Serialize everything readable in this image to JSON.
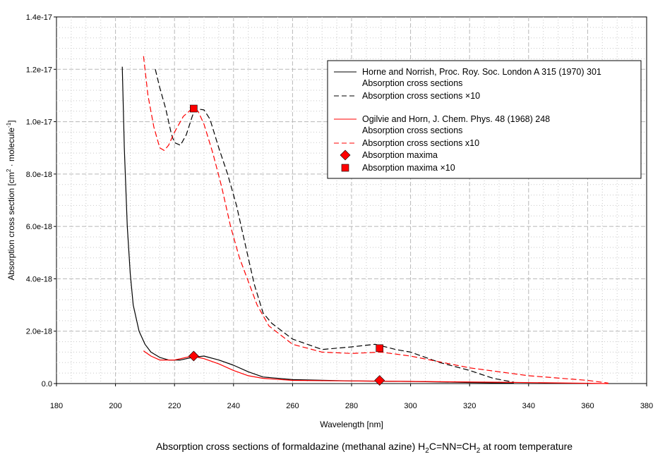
{
  "chart_data": {
    "type": "line",
    "title_parts": [
      "Absorption cross sections of formaldazine (methanal azine) H",
      "2",
      "C=NN=CH",
      "2",
      " at room temperature"
    ],
    "xlabel": "Wavelength [nm]",
    "ylabel_parts": [
      "Absorption cross section [cm",
      "2",
      " · molecule",
      "-1",
      "]"
    ],
    "xlim": [
      180,
      380
    ],
    "ylim": [
      0,
      1.4e-17
    ],
    "y_unit_scale": 1e-18,
    "x_ticks": [
      "180",
      "200",
      "220",
      "240",
      "260",
      "280",
      "300",
      "320",
      "340",
      "360",
      "380"
    ],
    "y_ticks": [
      "0.0",
      "2.0e-18",
      "4.0e-18",
      "6.0e-18",
      "8.0e-18",
      "1.0e-17",
      "1.2e-17",
      "1.4e-17"
    ],
    "grid": true,
    "legend_position": "top-right",
    "legend": {
      "ref1": "Horne and Norrish, Proc. Roy. Soc. London A 315 (1970) 301",
      "ref1_solid": "Absorption cross sections",
      "ref1_dashed": "Absorption cross sections ×10",
      "ref2": "Ogilvie and  Horn, J. Chem. Phys. 48 (1968) 248",
      "ref2_solid": "Absorption cross sections",
      "ref2_dashed": "Absorption cross sections x10",
      "maxima": "Absorption maxima",
      "maxima10": "Absorption maxima ×10"
    },
    "series": [
      {
        "name": "Horne and Norrish - Absorption cross sections",
        "color": "#000000",
        "dash": false,
        "points": [
          [
            202.3,
            12.1
          ],
          [
            203,
            9
          ],
          [
            204,
            6
          ],
          [
            205,
            4.2
          ],
          [
            206,
            3
          ],
          [
            208,
            2.0
          ],
          [
            210,
            1.5
          ],
          [
            212,
            1.2
          ],
          [
            215,
            1.0
          ],
          [
            218,
            0.9
          ],
          [
            222,
            0.9
          ],
          [
            226,
            1.0
          ],
          [
            230,
            1.05
          ],
          [
            235,
            0.9
          ],
          [
            240,
            0.7
          ],
          [
            245,
            0.45
          ],
          [
            250,
            0.25
          ],
          [
            260,
            0.15
          ],
          [
            280,
            0.1
          ],
          [
            300,
            0.08
          ],
          [
            320,
            0.04
          ],
          [
            335,
            0.02
          ]
        ]
      },
      {
        "name": "Horne and Norrish - Absorption cross sections ×10",
        "color": "#000000",
        "dash": true,
        "points": [
          [
            213.5,
            12.0
          ],
          [
            215,
            11.3
          ],
          [
            217,
            10.5
          ],
          [
            219,
            9.5
          ],
          [
            220,
            9.2
          ],
          [
            222,
            9.1
          ],
          [
            224,
            9.5
          ],
          [
            226,
            10.2
          ],
          [
            227,
            10.5
          ],
          [
            230,
            10.45
          ],
          [
            232,
            10.1
          ],
          [
            235,
            9.0
          ],
          [
            238,
            8.0
          ],
          [
            241,
            6.8
          ],
          [
            244,
            5.3
          ],
          [
            247,
            3.8
          ],
          [
            250,
            2.7
          ],
          [
            253,
            2.3
          ],
          [
            260,
            1.7
          ],
          [
            270,
            1.3
          ],
          [
            280,
            1.4
          ],
          [
            288,
            1.5
          ],
          [
            295,
            1.3
          ],
          [
            300,
            1.2
          ],
          [
            310,
            0.8
          ],
          [
            320,
            0.5
          ],
          [
            328,
            0.2
          ],
          [
            335,
            0.05
          ]
        ]
      },
      {
        "name": "Ogilvie and Horn - Absorption cross sections",
        "color": "#ff0000",
        "dash": false,
        "points": [
          [
            209.5,
            1.25
          ],
          [
            212,
            1.05
          ],
          [
            215,
            0.9
          ],
          [
            220,
            0.9
          ],
          [
            226,
            1.05
          ],
          [
            230,
            0.95
          ],
          [
            235,
            0.75
          ],
          [
            240,
            0.5
          ],
          [
            245,
            0.3
          ],
          [
            250,
            0.2
          ],
          [
            260,
            0.12
          ],
          [
            280,
            0.1
          ],
          [
            300,
            0.08
          ],
          [
            330,
            0.05
          ],
          [
            367,
            0.0
          ]
        ]
      },
      {
        "name": "Ogilvie and Horn - Absorption cross sections x10",
        "color": "#ff0000",
        "dash": true,
        "points": [
          [
            209.5,
            12.5
          ],
          [
            211,
            11
          ],
          [
            213,
            9.8
          ],
          [
            215,
            9.0
          ],
          [
            216.5,
            8.9
          ],
          [
            218,
            9.1
          ],
          [
            220,
            9.6
          ],
          [
            223,
            10.2
          ],
          [
            226,
            10.5
          ],
          [
            228,
            10.4
          ],
          [
            230,
            9.9
          ],
          [
            233,
            8.8
          ],
          [
            236,
            7.5
          ],
          [
            239,
            6.0
          ],
          [
            242,
            4.8
          ],
          [
            245,
            3.9
          ],
          [
            248,
            3.0
          ],
          [
            252,
            2.2
          ],
          [
            260,
            1.5
          ],
          [
            270,
            1.2
          ],
          [
            280,
            1.15
          ],
          [
            290,
            1.2
          ],
          [
            300,
            1.05
          ],
          [
            320,
            0.6
          ],
          [
            340,
            0.3
          ],
          [
            360,
            0.12
          ],
          [
            367,
            0.02
          ]
        ]
      }
    ],
    "maxima": [
      [
        226.5,
        1.05
      ],
      [
        289.5,
        0.12
      ]
    ],
    "maxima_x10": [
      [
        226.5,
        10.5
      ],
      [
        289.5,
        1.35
      ]
    ]
  }
}
